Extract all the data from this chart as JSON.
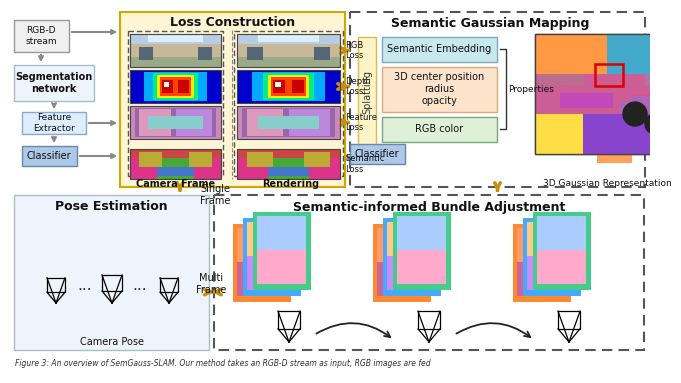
{
  "title": "Figure 3: An overview of SemGauss-SLAM. Our method takes an RGB-D stream as input, RGB images are fed",
  "bg_color": "#ffffff",
  "loss_construction_title": "Loss Construction",
  "sgm_title": "Semantic Gaussian Mapping",
  "siba_title": "Semantic-informed Bundle Adjustment",
  "pose_title": "Pose Estimation",
  "arrow_color_gold": "#c8900a",
  "arrow_color_gray": "#888888",
  "sem_embed_label": "Semantic Embedding",
  "center_props_label": "3D center position\nradius\nopacity",
  "rgb_color_label": "RGB color",
  "gauss_repr_label": "3D Gaussian Representation",
  "properties_label": "Properties",
  "splatting_label": "Splatting",
  "single_frame_label": "Single\nFrame",
  "multi_frame_label": "Multi\nFrame",
  "camera_frame_label": "Camera Frame",
  "rendering_label": "Rendering",
  "camera_pose_label": "Camera Pose",
  "rgb_loss_label": "RGB\nLoss",
  "depth_loss_label": "Depth\nLoss",
  "feature_loss_label": "Feature\nLoss",
  "semantic_loss_label": "Semantic\nLoss",
  "rgbd_stream_label": "RGB-D\nstream",
  "seg_net_label": "Segmentation\nnetwork",
  "feat_ext_label": "Feature\nExtractor",
  "classifier_label": "Classifier"
}
